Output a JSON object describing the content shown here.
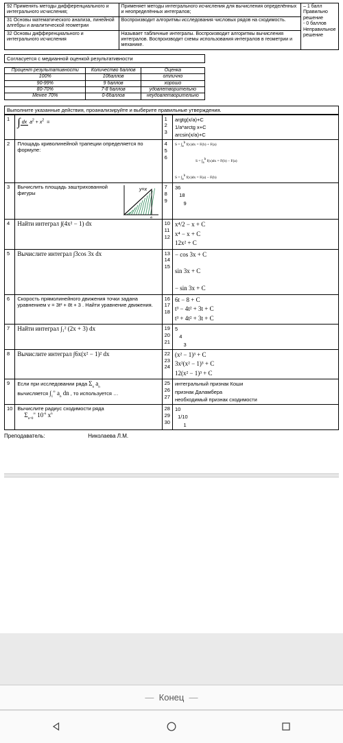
{
  "top_rows": [
    {
      "c1": "92 Применять методы дифференциального и интегрального исчисления;",
      "c2": "Применяет методы интегрального исчисления для вычисления определённых и неопределённых интегралов;",
      "c3": "– 1 балл Правильно решение"
    },
    {
      "c1": "31 Основы математического анализа, линейной алгебры и аналитической геометрии",
      "c2": "Воспроизводит алгоритмы исследования числовых рядов на сходимость.",
      "c3": "- 0 баллов Неправильное решение"
    },
    {
      "c1": "32 Основы дифференциального и интегрального исчисления",
      "c2": "Называет табличные интегралы. Воспроизводит алгоритмы вычисления интегралов. Воспроизводит схемы использования интегралов в геометрии и механике.",
      "c3": ""
    }
  ],
  "median_text": "Согласуется с медианной оценкой результативности",
  "grade_headers": [
    "Процент результативности",
    "Количество баллов",
    "Оценка"
  ],
  "grade_rows": [
    [
      "100%",
      "10баллов",
      "отлично"
    ],
    [
      "90-99%",
      "9 баллов",
      "хорошо"
    ],
    [
      "80-70%",
      "7-8 баллов",
      "удовлетворительно"
    ],
    [
      "Менее 70%",
      "0-6баллов",
      "неудовлетворительно"
    ]
  ],
  "instruction": "Выполните указанные действия, проанализируйте и выберите правильные утверждения.",
  "questions": [
    {
      "n": "1",
      "q_html": "integral_frac",
      "a_nums": "1\n2\n3",
      "a_text": "argtg(x/a)+C\n1/a*arctg x+C\narcsin(x/a)+C"
    },
    {
      "n": "2",
      "q": "Площадь криволинейной трапеции определяется по формуле:",
      "a_nums": "4\n\n5\n\n6",
      "a_text_html": "formulas_q2"
    },
    {
      "n": "3",
      "q": "Вычислить площадь заштрихованной фигуры",
      "has_fig": true,
      "a_nums": "7\n8\n9",
      "a_text": "36\n   18\n      9"
    },
    {
      "n": "4",
      "q_math": "Найти интеграл  ∫(4x² − 1) dx",
      "a_nums": "10\n11\n12",
      "a_text_html": "formulas_q4"
    },
    {
      "n": "5",
      "q_math": "Вычислите интеграл  ∫3cos 3x dx",
      "a_nums": "13\n14\n15",
      "a_text_html": "formulas_q5"
    },
    {
      "n": "6",
      "q": "Скорость прямолинейного движения точки задана уравнением v = 3t² + 8t + 3 . Найти уравнение движения.",
      "a_nums": "16\n17\n18",
      "a_text_html": "formulas_q6"
    },
    {
      "n": "7",
      "q_math": "Найти интеграл ∫₁² (2x + 3) dx",
      "a_nums": "19\n20\n21",
      "a_text": "5\n   4\n      3"
    },
    {
      "n": "8",
      "q_math": "Вычислите интеграл  ∫6x(x² − 1)² dx",
      "a_nums": "22\n23\n24",
      "a_text_html": "formulas_q8"
    },
    {
      "n": "9",
      "q_html": "q9",
      "a_nums": "25\n26\n27",
      "a_text": "интегральный признак Коши\nпризнак Даламбера\nнеобходимый признак сходимости"
    },
    {
      "n": "10",
      "q_html": "q10",
      "a_nums": "28\n29\n30",
      "a_text": "10\n  1/10\n      1"
    }
  ],
  "teacher_label": "Преподаватель:",
  "teacher_name": "Николаева Л.М.",
  "page_end": "Конец",
  "fig_label": "y=x",
  "colors": {
    "hatch": "#2e8b5a",
    "bg": "#ffffff"
  }
}
